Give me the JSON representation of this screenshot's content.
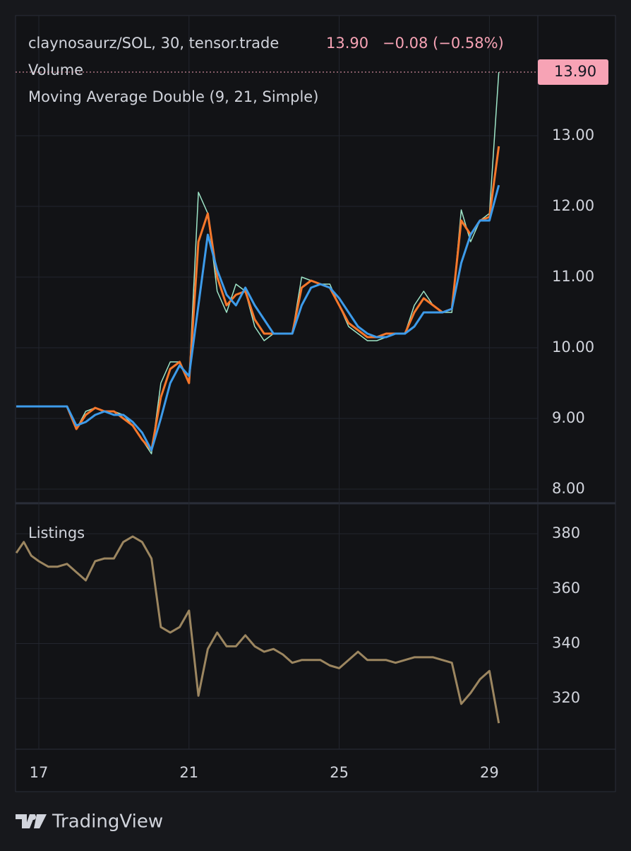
{
  "chart_data": [
    {
      "type": "line",
      "title": "claynosaurz/SOL, 30, tensor.trade",
      "last_price": 13.9,
      "last_price_label": "13.90",
      "change_label": "−0.08 (−0.58%)",
      "indicators": [
        "Volume",
        "Moving Average Double (9, 21, Simple)"
      ],
      "xlim": [
        16.38,
        30.29
      ],
      "ylim": [
        7.8,
        14.7
      ],
      "yticks": [
        {
          "value": 8,
          "label": "8.00"
        },
        {
          "value": 9,
          "label": "9.00"
        },
        {
          "value": 10,
          "label": "10.00"
        },
        {
          "value": 11,
          "label": "11.00"
        },
        {
          "value": 12,
          "label": "12.00"
        },
        {
          "value": 13,
          "label": "13.00"
        }
      ],
      "grid": true,
      "x": [
        16.4,
        17,
        17.5,
        17.75,
        18,
        18.25,
        18.5,
        18.75,
        19,
        19.25,
        19.5,
        19.75,
        20,
        20.25,
        20.5,
        20.75,
        21,
        21.25,
        21.5,
        21.75,
        22,
        22.25,
        22.5,
        22.75,
        23,
        23.25,
        23.5,
        23.75,
        24,
        24.25,
        24.5,
        24.75,
        25,
        25.25,
        25.5,
        25.75,
        26,
        26.25,
        26.5,
        26.75,
        27,
        27.25,
        27.5,
        27.75,
        28,
        28.25,
        28.5,
        28.75,
        29,
        29.25
      ],
      "series": [
        {
          "color": "#9fe6c8",
          "values": [
            9.17,
            9.17,
            9.17,
            9.17,
            8.85,
            9.1,
            9.15,
            9.1,
            9.1,
            9.05,
            8.9,
            8.7,
            8.5,
            9.5,
            9.8,
            9.8,
            9.5,
            12.2,
            11.9,
            10.8,
            10.5,
            10.9,
            10.8,
            10.3,
            10.1,
            10.2,
            10.2,
            10.2,
            11.0,
            10.95,
            10.9,
            10.9,
            10.6,
            10.3,
            10.2,
            10.1,
            10.1,
            10.15,
            10.2,
            10.2,
            10.6,
            10.8,
            10.6,
            10.5,
            10.5,
            11.95,
            11.5,
            11.8,
            11.9,
            13.9
          ]
        },
        {
          "color": "#f5772b",
          "values": [
            9.17,
            9.17,
            9.17,
            9.17,
            8.85,
            9.05,
            9.15,
            9.1,
            9.1,
            9.0,
            8.9,
            8.7,
            8.55,
            9.3,
            9.7,
            9.8,
            9.5,
            11.5,
            11.9,
            11.0,
            10.6,
            10.75,
            10.8,
            10.4,
            10.2,
            10.2,
            10.2,
            10.2,
            10.85,
            10.95,
            10.9,
            10.85,
            10.6,
            10.35,
            10.25,
            10.15,
            10.15,
            10.2,
            10.2,
            10.2,
            10.5,
            10.7,
            10.6,
            10.5,
            10.55,
            11.8,
            11.6,
            11.8,
            11.85,
            12.85
          ]
        },
        {
          "color": "#3d9bea",
          "values": [
            9.17,
            9.17,
            9.17,
            9.17,
            8.9,
            8.95,
            9.05,
            9.1,
            9.05,
            9.05,
            8.95,
            8.8,
            8.55,
            9.0,
            9.5,
            9.75,
            9.6,
            10.6,
            11.6,
            11.1,
            10.75,
            10.6,
            10.85,
            10.6,
            10.4,
            10.2,
            10.2,
            10.2,
            10.6,
            10.85,
            10.9,
            10.85,
            10.7,
            10.5,
            10.3,
            10.2,
            10.15,
            10.15,
            10.2,
            10.2,
            10.3,
            10.5,
            10.5,
            10.5,
            10.55,
            11.2,
            11.6,
            11.8,
            11.8,
            12.3
          ]
        }
      ]
    },
    {
      "type": "line",
      "title": "Listings",
      "xlim": [
        16.38,
        30.29
      ],
      "ylim": [
        301.5,
        391.1
      ],
      "yticks": [
        320,
        340,
        360,
        380
      ],
      "xticks": [
        17,
        21,
        25,
        29
      ],
      "grid": true,
      "x": [
        16.4,
        16.6,
        16.8,
        17,
        17.25,
        17.5,
        17.75,
        18,
        18.25,
        18.5,
        18.75,
        19,
        19.25,
        19.5,
        19.75,
        20,
        20.25,
        20.5,
        20.75,
        21,
        21.25,
        21.5,
        21.75,
        22,
        22.25,
        22.5,
        22.75,
        23,
        23.25,
        23.5,
        23.75,
        24,
        24.25,
        24.5,
        24.75,
        25,
        25.25,
        25.5,
        25.75,
        26,
        26.25,
        26.5,
        26.75,
        27,
        27.25,
        27.5,
        27.75,
        28,
        28.25,
        28.5,
        28.75,
        29,
        29.25
      ],
      "series": [
        {
          "color": "#9c8660",
          "values": [
            373,
            377,
            372,
            370,
            368,
            368,
            369,
            366,
            363,
            370,
            371,
            371,
            377,
            379,
            377,
            371,
            346,
            344,
            346,
            352,
            321,
            338,
            344,
            339,
            339,
            343,
            339,
            337,
            338,
            336,
            333,
            334,
            334,
            334,
            332,
            331,
            334,
            337,
            334,
            334,
            334,
            333,
            334,
            335,
            335,
            335,
            334,
            333,
            318,
            322,
            327,
            330,
            311
          ]
        }
      ]
    }
  ],
  "footer": {
    "brand": "TradingView"
  }
}
